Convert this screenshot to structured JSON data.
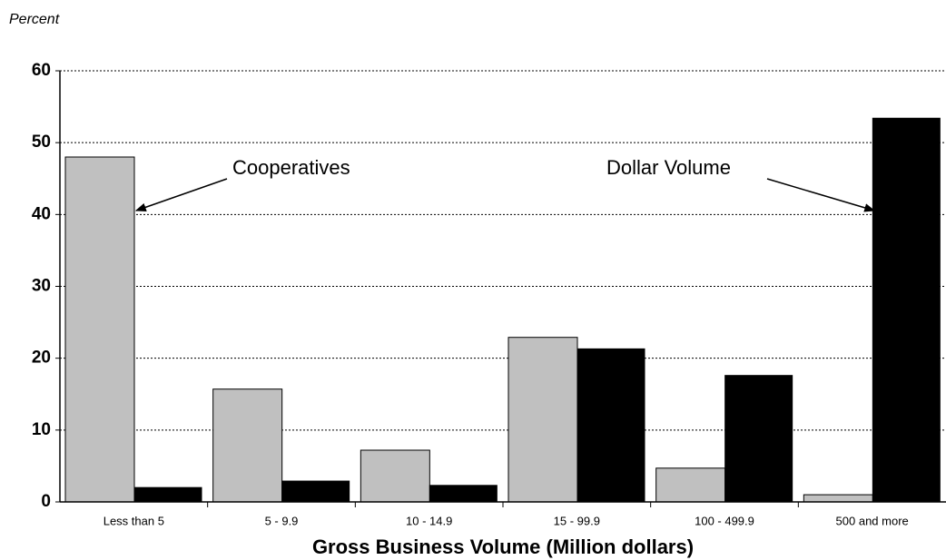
{
  "chart_data": {
    "type": "bar",
    "y_label": "Percent",
    "x_label": "Gross Business Volume (Million dollars)",
    "categories": [
      "Less than 5",
      "5 - 9.9",
      "10 - 14.9",
      "15 - 99.9",
      "100 - 499.9",
      "500 and more"
    ],
    "series": [
      {
        "name": "Cooperatives",
        "color": "#c0c0c0",
        "values": [
          48.0,
          15.7,
          7.2,
          22.9,
          4.7,
          1.0
        ]
      },
      {
        "name": "Dollar Volume",
        "color": "#000000",
        "values": [
          2.0,
          2.9,
          2.3,
          21.3,
          17.6,
          53.4
        ]
      }
    ],
    "ylim": [
      0,
      60
    ],
    "yticks": [
      0,
      10,
      20,
      30,
      40,
      50,
      60
    ],
    "grid": true
  }
}
